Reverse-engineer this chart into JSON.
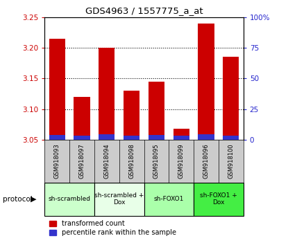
{
  "title": "GDS4963 / 1557775_a_at",
  "samples": [
    "GSM918093",
    "GSM918097",
    "GSM918094",
    "GSM918098",
    "GSM918095",
    "GSM918099",
    "GSM918096",
    "GSM918100"
  ],
  "transformed_counts": [
    3.215,
    3.12,
    3.2,
    3.13,
    3.145,
    3.068,
    3.24,
    3.185
  ],
  "percentile_ranks": [
    4.0,
    3.5,
    4.5,
    3.5,
    4.0,
    3.0,
    4.5,
    3.5
  ],
  "y_min": 3.05,
  "y_max": 3.25,
  "y_ticks": [
    3.05,
    3.1,
    3.15,
    3.2,
    3.25
  ],
  "y2_ticks": [
    0,
    25,
    50,
    75,
    100
  ],
  "bar_color_red": "#cc0000",
  "bar_color_blue": "#3333cc",
  "protocol_groups": [
    {
      "label": "sh-scrambled",
      "start": 0,
      "end": 2,
      "color": "#ccffcc"
    },
    {
      "label": "sh-scrambled +\nDox",
      "start": 2,
      "end": 4,
      "color": "#e8ffe8"
    },
    {
      "label": "sh-FOXO1",
      "start": 4,
      "end": 6,
      "color": "#aaffaa"
    },
    {
      "label": "sh-FOXO1 +\nDox",
      "start": 6,
      "end": 8,
      "color": "#44ee44"
    }
  ],
  "bar_color_red_label": "transformed count",
  "bar_color_blue_label": "percentile rank within the sample",
  "tick_bg_color": "#cccccc",
  "ylabel_color": "#cc0000",
  "y2label_color": "#2222cc"
}
